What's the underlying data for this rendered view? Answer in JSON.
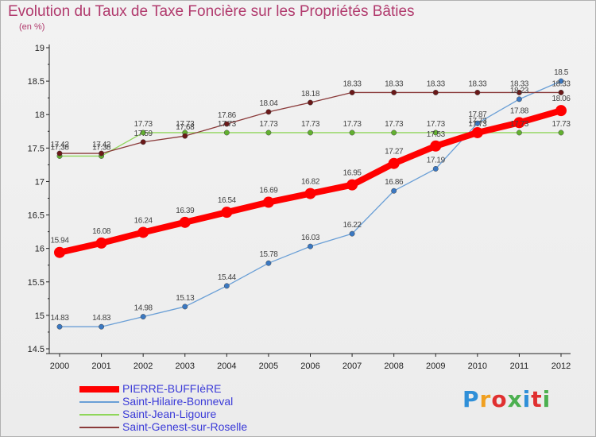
{
  "title": "Evolution du Taux de Taxe Foncière sur les Propriétés Bâties",
  "subtitle": "(en %)",
  "logo": "Proxiti",
  "logo_colors": [
    "#2f8fd8",
    "#f0a020",
    "#e03030",
    "#4cb050",
    "#2f8fd8",
    "#e03030",
    "#4cb050"
  ],
  "chart_data": {
    "type": "line",
    "title": "Evolution du Taux de Taxe Foncière sur les Propriétés Bâties",
    "ylabel": "(en %)",
    "xlabel": "",
    "x": [
      "2000",
      "2001",
      "2002",
      "2003",
      "2004",
      "2005",
      "2006",
      "2007",
      "2008",
      "2009",
      "2010",
      "2011",
      "2012"
    ],
    "ylim": [
      14.5,
      19
    ],
    "yticks": [
      "14.5",
      "15",
      "15.5",
      "16",
      "16.5",
      "17",
      "17.5",
      "18",
      "18.5",
      "19"
    ],
    "grid": false,
    "legend_position": "bottom-left",
    "series": [
      {
        "name": "PIERRE-BUFFIèRE",
        "color": "#ff0000",
        "point_color": "#ff0000",
        "values": [
          15.94,
          16.08,
          16.24,
          16.39,
          16.54,
          16.69,
          16.82,
          16.95,
          17.27,
          17.53,
          17.73,
          17.88,
          18.06
        ],
        "labels": [
          "15.94",
          "16.08",
          "16.24",
          "16.39",
          "16.54",
          "16.69",
          "16.82",
          "16.95",
          "17.27",
          "17.53",
          "17.73",
          "17.88",
          "18.06"
        ]
      },
      {
        "name": "Saint-Hilaire-Bonneval",
        "color": "#6a9fd6",
        "point_color": "#3a78c2",
        "values": [
          14.83,
          14.83,
          14.98,
          15.13,
          15.44,
          15.78,
          16.03,
          16.22,
          16.86,
          17.19,
          17.87,
          18.23,
          18.5
        ],
        "labels": [
          "14.83",
          "14.83",
          "14.98",
          "15.13",
          "15.44",
          "15.78",
          "16.03",
          "16.22",
          "16.86",
          "17.19",
          "17.87",
          "18.23",
          "18.5"
        ]
      },
      {
        "name": "Saint-Jean-Ligoure",
        "color": "#8fd65a",
        "point_color": "#62b030",
        "values": [
          17.38,
          17.38,
          17.73,
          17.73,
          17.73,
          17.73,
          17.73,
          17.73,
          17.73,
          17.73,
          17.73,
          17.73,
          17.73
        ],
        "labels": [
          "17.38",
          "17.38",
          "17.73",
          "17.73",
          "17.73",
          "17.73",
          "17.73",
          "17.73",
          "17.73",
          "17.73",
          "17.73",
          "17.73",
          "17.73"
        ]
      },
      {
        "name": "Saint-Genest-sur-Roselle",
        "color": "#8a3a3a",
        "point_color": "#6a1818",
        "values": [
          17.42,
          17.42,
          17.59,
          17.68,
          17.86,
          18.04,
          18.18,
          18.33,
          18.33,
          18.33,
          18.33,
          18.33,
          18.33
        ],
        "labels": [
          "17.42",
          "17.42",
          "17.59",
          "17.68",
          "17.86",
          "18.04",
          "18.18",
          "18.33",
          "18.33",
          "18.33",
          "18.33",
          "18.33",
          "18.33"
        ]
      }
    ]
  }
}
